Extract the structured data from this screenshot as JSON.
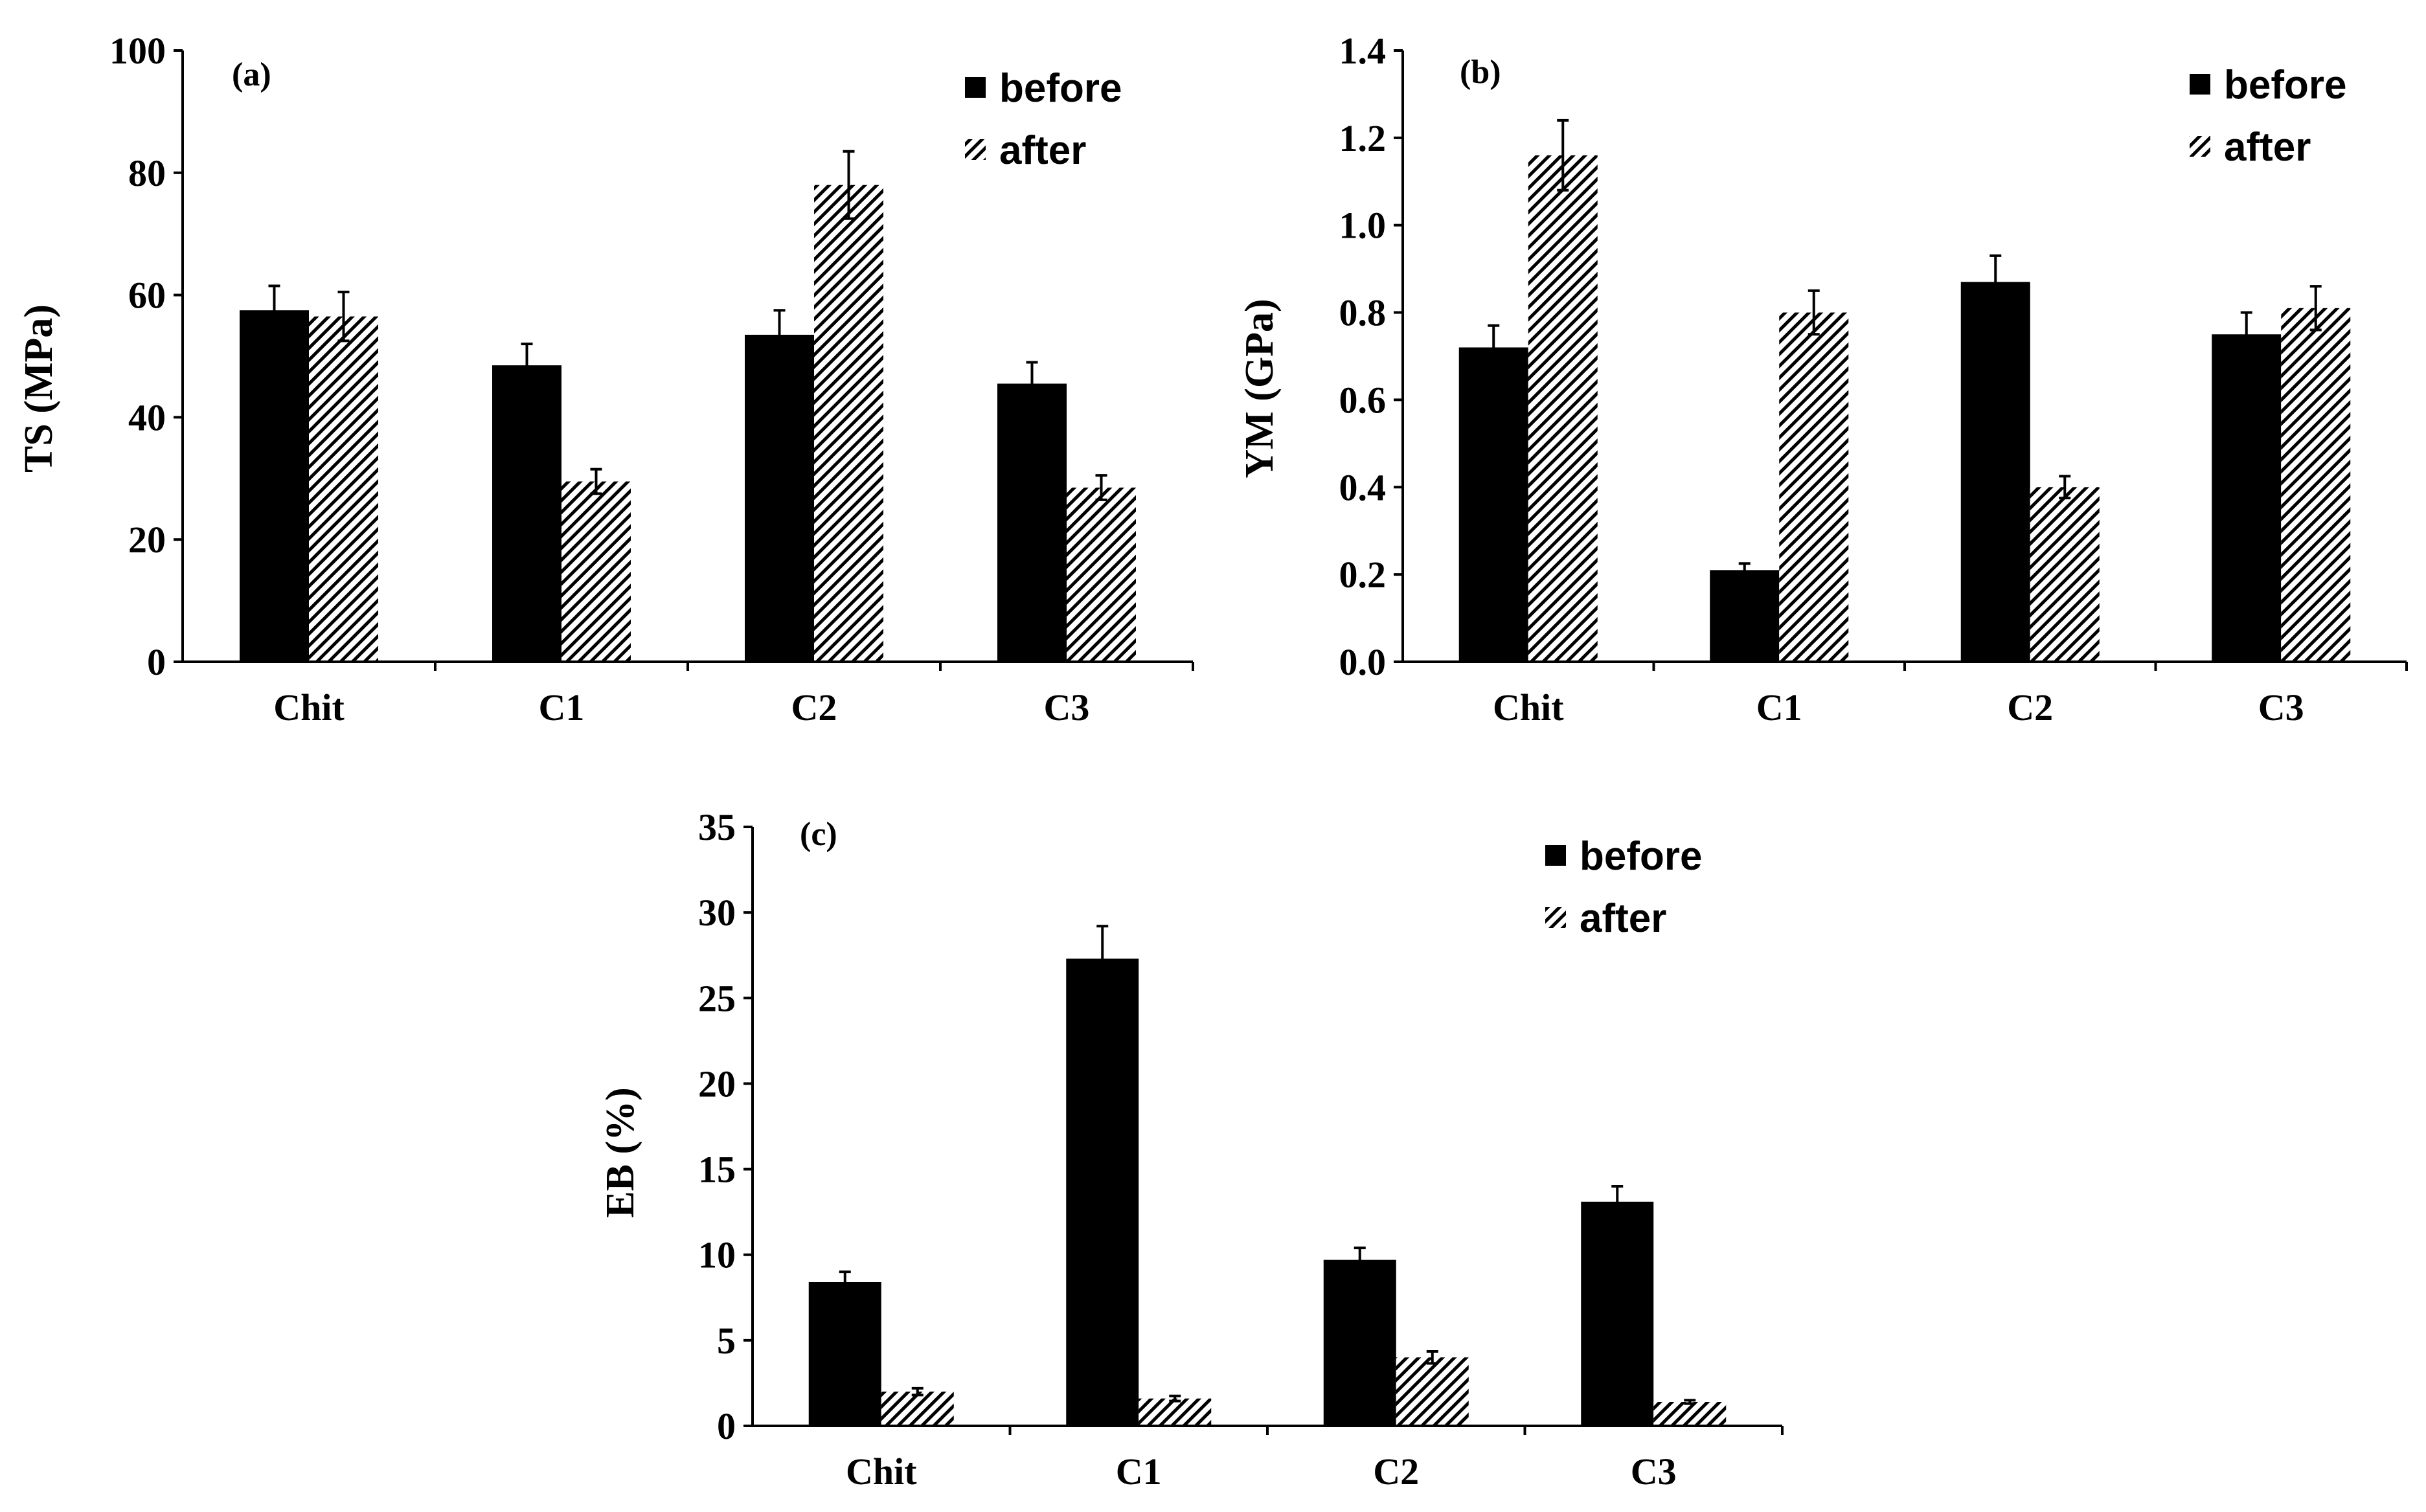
{
  "legend": {
    "before": "before",
    "after": "after"
  },
  "colors": {
    "before": "#000000",
    "after_hatch": "#000000",
    "background": "#ffffff"
  },
  "chart_data": [
    {
      "type": "bar",
      "title": "(a)",
      "ylabel": "TS (MPa)",
      "xlabel": "",
      "categories": [
        "Chit",
        "C1",
        "C2",
        "C3"
      ],
      "ylim": [
        0,
        100
      ],
      "yticks": [
        "0",
        "20",
        "40",
        "60",
        "80",
        "100"
      ],
      "yticks_values": [
        0,
        20,
        40,
        60,
        80,
        100
      ],
      "series": [
        {
          "name": "before",
          "values": [
            57.5,
            48.5,
            53.5,
            45.5
          ],
          "errors": [
            4.0,
            3.5,
            4.0,
            3.5
          ]
        },
        {
          "name": "after",
          "values": [
            56.5,
            29.5,
            78.0,
            28.5
          ],
          "errors": [
            4.0,
            2.0,
            5.5,
            2.0
          ]
        }
      ]
    },
    {
      "type": "bar",
      "title": "(b)",
      "ylabel": "YM (GPa)",
      "xlabel": "",
      "categories": [
        "Chit",
        "C1",
        "C2",
        "C3"
      ],
      "ylim": [
        0,
        1.4
      ],
      "yticks": [
        "0.0",
        "0.2",
        "0.4",
        "0.6",
        "0.8",
        "1.0",
        "1.2",
        "1.4"
      ],
      "yticks_values": [
        0,
        0.2,
        0.4,
        0.6,
        0.8,
        1.0,
        1.2,
        1.4
      ],
      "series": [
        {
          "name": "before",
          "values": [
            0.72,
            0.21,
            0.87,
            0.75
          ],
          "errors": [
            0.05,
            0.015,
            0.06,
            0.05
          ]
        },
        {
          "name": "after",
          "values": [
            1.16,
            0.8,
            0.4,
            0.81
          ],
          "errors": [
            0.08,
            0.05,
            0.025,
            0.05
          ]
        }
      ]
    },
    {
      "type": "bar",
      "title": "(c)",
      "ylabel": "EB (%)",
      "xlabel": "",
      "categories": [
        "Chit",
        "C1",
        "C2",
        "C3"
      ],
      "ylim": [
        0,
        35
      ],
      "yticks": [
        "0",
        "5",
        "10",
        "15",
        "20",
        "25",
        "30",
        "35"
      ],
      "yticks_values": [
        0,
        5,
        10,
        15,
        20,
        25,
        30,
        35
      ],
      "series": [
        {
          "name": "before",
          "values": [
            8.4,
            27.3,
            9.7,
            13.1
          ],
          "errors": [
            0.6,
            1.9,
            0.7,
            0.9
          ]
        },
        {
          "name": "after",
          "values": [
            2.0,
            1.6,
            4.0,
            1.4
          ],
          "errors": [
            0.2,
            0.15,
            0.35,
            0.1
          ]
        }
      ]
    }
  ]
}
